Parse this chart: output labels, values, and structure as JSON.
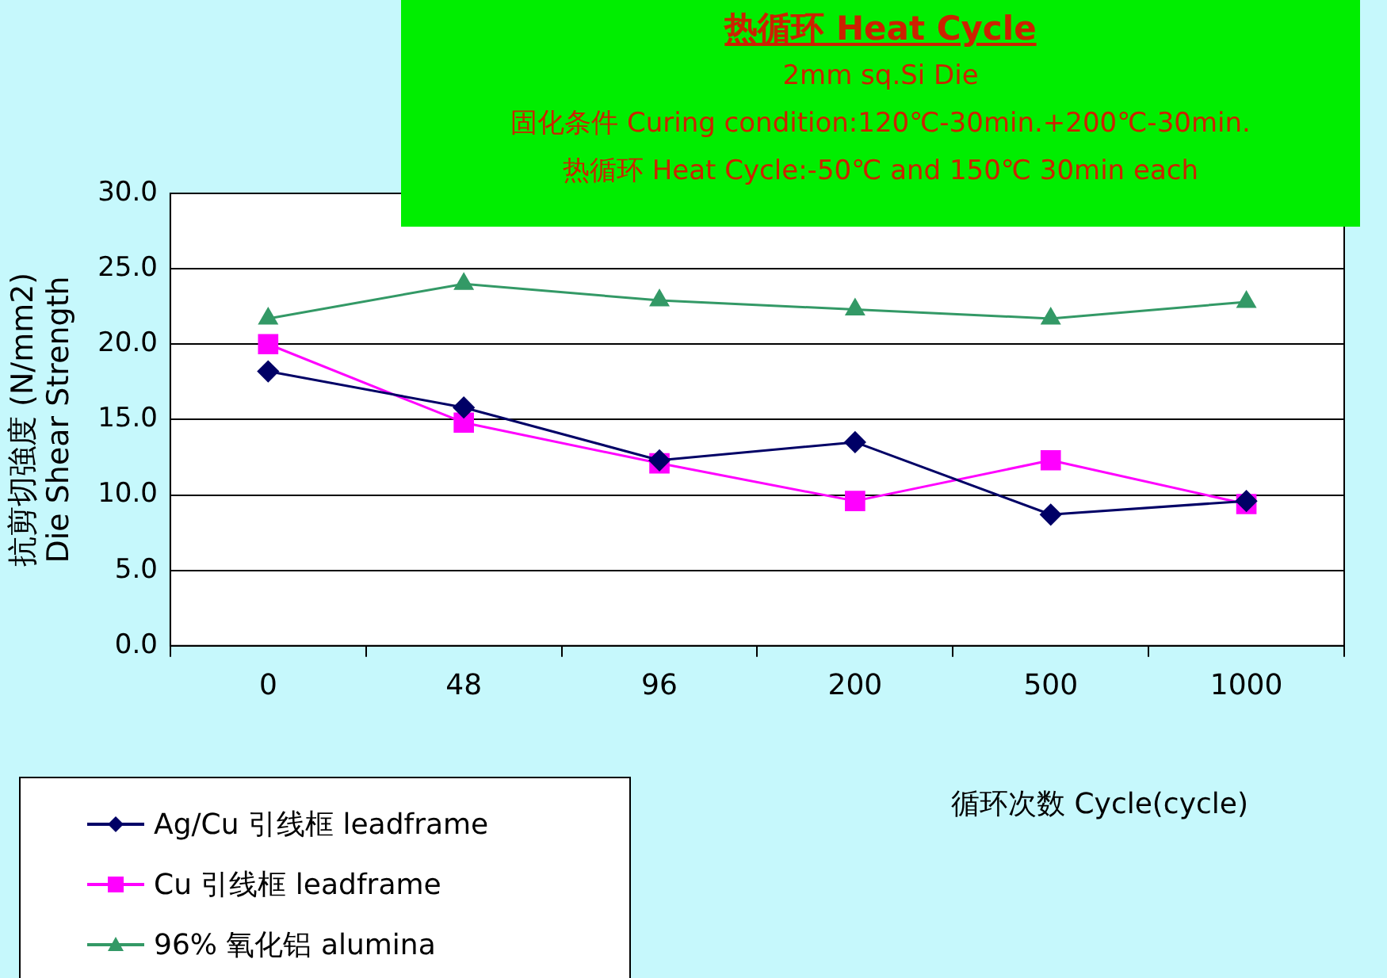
{
  "chart_data": {
    "type": "line",
    "title": "热循环 Heat Cycle",
    "subtitle": "2mm sq.Si Die",
    "annotations": [
      "固化条件 Curing condition:120℃-30min.+200℃-30min.",
      "热循环 Heat Cycle:-50℃ and 150℃  30min each"
    ],
    "xlabel": "循环次数 Cycle(cycle)",
    "ylabel": "抗剪切強度 (N/mm2)\nDie Shear Strength",
    "categories": [
      "0",
      "48",
      "96",
      "200",
      "500",
      "1000"
    ],
    "series": [
      {
        "name": "Ag/Cu 引线框 leadframe",
        "color": "#000066",
        "marker": "diamond",
        "values": [
          18.2,
          15.8,
          12.3,
          13.5,
          8.7,
          9.6
        ]
      },
      {
        "name": "Cu 引线框 leadframe",
        "color": "#ff00ff",
        "marker": "square",
        "values": [
          20.0,
          14.8,
          12.1,
          9.6,
          12.3,
          9.4
        ]
      },
      {
        "name": "96% 氧化铝 alumina",
        "color": "#339966",
        "marker": "triangle",
        "values": [
          21.7,
          24.0,
          22.9,
          22.3,
          21.7,
          22.8
        ]
      }
    ],
    "ylim": [
      0,
      30
    ],
    "yticks": [
      {
        "value": 0,
        "label": "0.0"
      },
      {
        "value": 5,
        "label": "5.0"
      },
      {
        "value": 10,
        "label": "10.0"
      },
      {
        "value": 15,
        "label": "15.0"
      },
      {
        "value": 20,
        "label": "20.0"
      },
      {
        "value": 25,
        "label": "25.0"
      },
      {
        "value": 30,
        "label": "30.0"
      }
    ],
    "grid": "y",
    "legend": "bottom left",
    "line_style": "solid"
  }
}
